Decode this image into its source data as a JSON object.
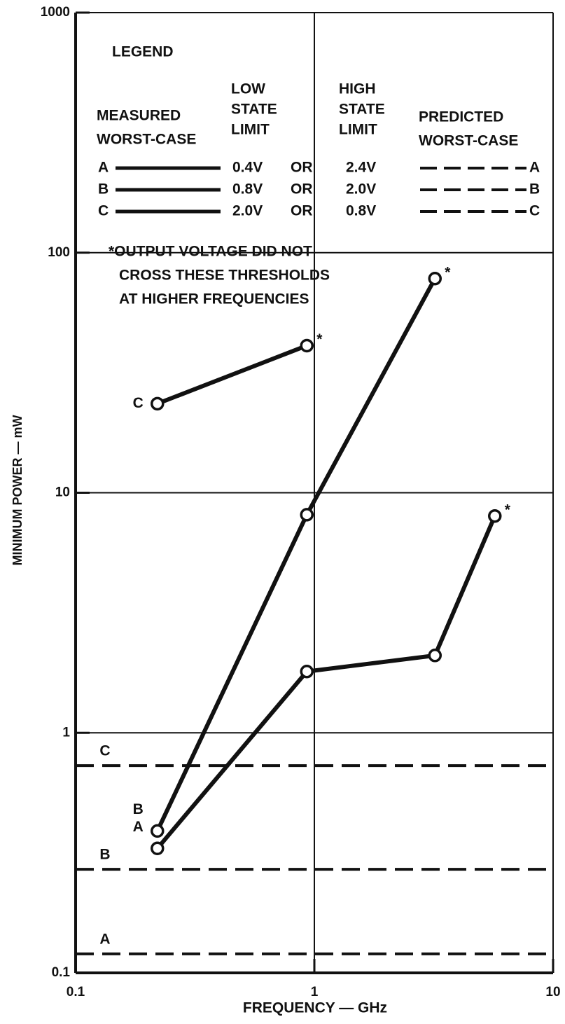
{
  "chart_data": {
    "type": "line",
    "xlabel": "FREQUENCY — GHz",
    "ylabel": "MINIMUM POWER — mW",
    "xlim": [
      0.1,
      10
    ],
    "ylim": [
      0.1,
      1000
    ],
    "xticks": [
      0.1,
      1,
      10
    ],
    "yticks": [
      0.1,
      1,
      10,
      100,
      1000
    ],
    "xlog": true,
    "ylog": true,
    "grid": true,
    "series": [
      {
        "name": "A",
        "color": "#111111",
        "dashed": false,
        "x": [
          0.22,
          0.93,
          3.2,
          5.7
        ],
        "values": [
          0.33,
          1.8,
          2.1,
          8.0
        ]
      },
      {
        "name": "B",
        "color": "#111111",
        "dashed": false,
        "x": [
          0.22,
          0.93,
          3.2
        ],
        "values": [
          0.39,
          8.1,
          78
        ]
      },
      {
        "name": "C",
        "color": "#111111",
        "dashed": false,
        "x": [
          0.22,
          0.93
        ],
        "values": [
          23.5,
          41
        ]
      },
      {
        "name": "A",
        "color": "#111111",
        "dashed": true,
        "x": [
          0.1,
          10
        ],
        "values": [
          0.12,
          0.12
        ]
      },
      {
        "name": "B",
        "color": "#111111",
        "dashed": true,
        "x": [
          0.1,
          10
        ],
        "values": [
          0.27,
          0.27
        ]
      },
      {
        "name": "C",
        "color": "#111111",
        "dashed": true,
        "x": [
          0.1,
          10
        ],
        "values": [
          0.73,
          0.73
        ]
      }
    ],
    "legend": {
      "title": "LEGEND",
      "measured": [
        "MEASURED",
        "WORST-CASE"
      ],
      "low": [
        "LOW",
        "STATE",
        "LIMIT"
      ],
      "high": [
        "HIGH",
        "STATE",
        "LIMIT"
      ],
      "predicted": [
        "PREDICTED",
        "WORST-CASE"
      ],
      "rows": [
        {
          "low": "0.4V",
          "or": "OR",
          "high": "2.4V"
        },
        {
          "low": "0.8V",
          "or": "OR",
          "high": "2.0V"
        },
        {
          "low": "2.0V",
          "or": "OR",
          "high": "0.8V"
        }
      ]
    },
    "note": [
      "*OUTPUT VOLTAGE DID NOT",
      "CROSS THESE THRESHOLDS",
      "AT HIGHER FREQUENCIES"
    ],
    "annotations": [
      {
        "text": "*",
        "x": 0.93,
        "y": 41
      },
      {
        "text": "*",
        "x": 3.2,
        "y": 78
      },
      {
        "text": "*",
        "x": 5.7,
        "y": 8.0
      }
    ]
  }
}
